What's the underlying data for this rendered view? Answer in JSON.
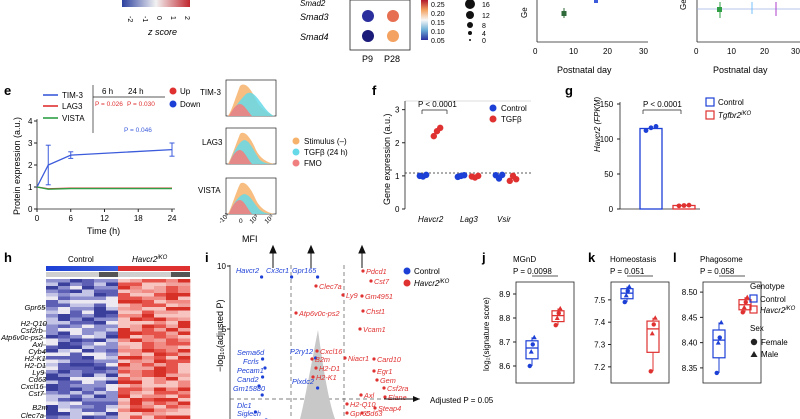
{
  "panel_labels": {
    "e": "e",
    "f": "f",
    "g": "g",
    "h": "h",
    "i": "i",
    "j": "j",
    "k": "k",
    "l": "l"
  },
  "top_strip": {
    "zscore_ticks": [
      "-2",
      "-1",
      "0",
      "1",
      "2"
    ],
    "zscore_label": "z score",
    "genes": [
      "Smad2",
      "Smad3",
      "Smad4"
    ],
    "timepoints": [
      "P9",
      "P28"
    ],
    "color_ticks": [
      "0.25",
      "0.20",
      "0.15",
      "0.10",
      "0.05"
    ],
    "size_ticks": [
      "16",
      "12",
      "8",
      "4",
      "0"
    ],
    "mid_xlabel": "Postnatal day",
    "mid_xticks": [
      "0",
      "10",
      "20",
      "30"
    ],
    "mid_ylabel": "Ge",
    "right_xlabel": "Postnatal day",
    "right_xticks": [
      "0",
      "10",
      "20",
      "30"
    ],
    "right_ylabel": "Ge"
  },
  "panel_e": {
    "chart_data": {
      "type": "line",
      "xlabel": "Time (h)",
      "ylabel": "Protein expression (a.u.)",
      "xticks": [
        "0",
        "6",
        "12",
        "18",
        "24"
      ],
      "yticks": [
        "0",
        "1",
        "2",
        "3",
        "4"
      ],
      "xlim": [
        0,
        24
      ],
      "ylim": [
        0,
        4
      ],
      "series": [
        {
          "name": "TIM-3",
          "color": "#3b5bdb",
          "x": [
            0,
            2,
            6,
            24
          ],
          "y": [
            1.0,
            2.0,
            2.45,
            2.7
          ],
          "err": [
            0,
            0.9,
            0.15,
            0.3
          ]
        },
        {
          "name": "LAG3",
          "color": "#e03131",
          "x": [
            0,
            2,
            6,
            24
          ],
          "y": [
            1.0,
            0.92,
            0.95,
            0.95
          ],
          "err": [
            0,
            0,
            0,
            0
          ]
        },
        {
          "name": "VISTA",
          "color": "#2f9e44",
          "x": [
            0,
            2,
            6,
            24
          ],
          "y": [
            1.0,
            0.9,
            0.93,
            0.93
          ],
          "err": [
            0,
            0,
            0,
            0
          ]
        }
      ]
    },
    "col_6h": "6 h",
    "col_24h": "24 h",
    "p_6h": "P = 0.026",
    "p_24h": "P = 0.030",
    "p_tim3": "P = 0.046",
    "up_label": "Up",
    "down_label": "Down",
    "up_color": "#e03131",
    "down_color": "#1c3fd6"
  },
  "panel_e_hist": {
    "rows": [
      "TIM-3",
      "LAG3",
      "VISTA"
    ],
    "xticks": [
      "-10³",
      "0",
      "10³",
      "10⁵"
    ],
    "xlabel": "MFI",
    "legend": [
      {
        "label": "Stimulus (–)",
        "color": "#f6b26b"
      },
      {
        "label": "TGFβ (24 h)",
        "color": "#66d9e8"
      },
      {
        "label": "FMO",
        "color": "#f08080"
      }
    ]
  },
  "panel_f": {
    "chart_data": {
      "type": "scatter",
      "ylabel": "Gene expression (a.u.)",
      "yticks": [
        "0",
        "1",
        "2",
        "3"
      ],
      "ylim": [
        0,
        3
      ],
      "categories": [
        "Havcr2",
        "Lag3",
        "Vsir"
      ],
      "series": [
        {
          "name": "Control",
          "color": "#1c3fd6",
          "values": [
            [
              1.0,
              0.98,
              1.03
            ],
            [
              0.97,
              1.0,
              1.02
            ],
            [
              1.02,
              0.92,
              1.03
            ]
          ]
        },
        {
          "name": "TGFβ",
          "color": "#e03131",
          "values": [
            [
              2.2,
              2.35,
              2.45
            ],
            [
              0.98,
              0.95,
              1.0
            ],
            [
              0.85,
              1.0,
              0.9
            ]
          ]
        }
      ]
    },
    "pvalue": "P < 0.0001",
    "legend_control": "Control",
    "legend_tgfb": "TGFβ"
  },
  "panel_g": {
    "chart_data": {
      "type": "bar",
      "ylabel": "Havcr2 (FPKM)",
      "yticks": [
        "0",
        "50",
        "100",
        "150"
      ],
      "ylim": [
        0,
        150
      ],
      "categories": [
        "Control",
        "Tgfbr2 iKO"
      ],
      "values": [
        115,
        5
      ]
    },
    "pvalue": "P < 0.0001",
    "legend_control": "Control",
    "legend_ko": "Tgfbr2",
    "legend_ko_sup": "iKO"
  },
  "panel_h": {
    "header_control": "Control",
    "header_ko": "Havcr2",
    "header_ko_sup": "iKO",
    "genes": [
      "Gpr65",
      "H2-Q10",
      "Csf2rb",
      "Atp6v0c-ps2",
      "Axl",
      "Cyb4",
      "H2-K1",
      "H2-D1",
      "Ly9",
      "Cd63",
      "Cxcl16",
      "Cst7",
      "B2m",
      "Clec7a"
    ]
  },
  "panel_i": {
    "ylabel": "−log₁₀(adjusted P)",
    "legend_control": "Control",
    "legend_ko": "Havcr2",
    "legend_ko_sup": "iKO",
    "threshold_label": "Adjusted P = 0.05",
    "blue_genes": [
      "Havcr2",
      "Cx3cr1",
      "Gpr165",
      "P2ry12",
      "Sema6d",
      "Fcrls",
      "Pecam1",
      "Cand2",
      "Gm15880",
      "Plxdc2",
      "Dlc1",
      "Siglech"
    ],
    "red_genes": [
      "Pdcd1",
      "Cst7",
      "Clec7a",
      "Ly9",
      "Gm4951",
      "Atp6v0c-ps2",
      "Chst1",
      "Vcam1",
      "Cxcl16",
      "B2m",
      "H2-D1",
      "H2-K1",
      "Niacr1",
      "Card10",
      "Egr1",
      "Gem",
      "Csf2ra",
      "Elane",
      "Axl",
      "H2-Q10",
      "Gpr65",
      "Cd63",
      "Steap4"
    ]
  },
  "panel_j": {
    "title": "MGnD",
    "pvalue": "P = 0.0098",
    "ylabel": "log₂(signature score)",
    "yticks": [
      "8.6",
      "8.7",
      "8.8",
      "8.9"
    ],
    "chart_data": {
      "type": "box",
      "ylim": [
        8.55,
        8.95
      ],
      "categories": [
        "Control",
        "Havcr2 iKO"
      ],
      "series": [
        {
          "name": "Control",
          "values": [
            8.6,
            8.66,
            8.69,
            8.72
          ]
        },
        {
          "name": "Havcr2 iKO",
          "values": [
            8.77,
            8.8,
            8.82,
            8.84
          ]
        }
      ]
    }
  },
  "panel_k": {
    "title": "Homeostasis",
    "pvalue": "P = 0.051",
    "yticks": [
      "7.2",
      "7.3",
      "7.4",
      "7.5"
    ],
    "chart_data": {
      "type": "box",
      "ylim": [
        7.15,
        7.58
      ],
      "categories": [
        "Control",
        "Havcr2 iKO"
      ],
      "series": [
        {
          "name": "Control",
          "values": [
            7.49,
            7.52,
            7.54,
            7.56
          ]
        },
        {
          "name": "Havcr2 iKO",
          "values": [
            7.18,
            7.35,
            7.39,
            7.42
          ]
        }
      ]
    }
  },
  "panel_l": {
    "title": "Phagosome",
    "pvalue": "P = 0.058",
    "yticks": [
      "8.35",
      "8.40",
      "8.45",
      "8.50"
    ],
    "chart_data": {
      "type": "box",
      "ylim": [
        8.33,
        8.52
      ],
      "categories": [
        "Control",
        "Havcr2 iKO"
      ],
      "series": [
        {
          "name": "Control",
          "values": [
            8.34,
            8.4,
            8.41,
            8.44
          ]
        },
        {
          "name": "Havcr2 iKO",
          "values": [
            8.46,
            8.47,
            8.48,
            8.49
          ]
        }
      ]
    }
  },
  "legend_right": {
    "genotype_title": "Genotype",
    "control": "Control",
    "ko": "Havcr2",
    "ko_sup": "iKO",
    "sex_title": "Sex",
    "female": "Female",
    "male": "Male"
  }
}
